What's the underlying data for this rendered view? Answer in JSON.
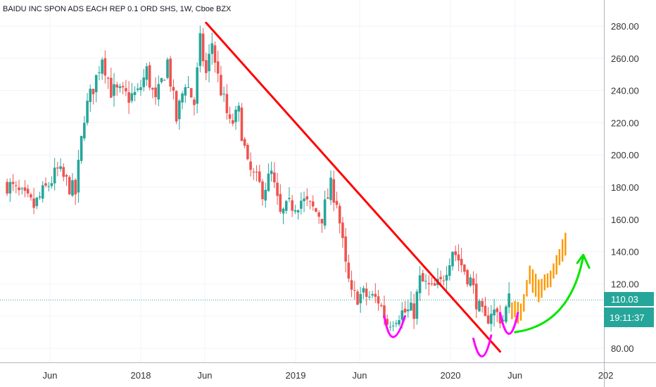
{
  "chart_data": {
    "type": "candlestick",
    "title": "BAIDU INC SPON ADS EACH REP 0.1 ORD SHS, 1W, Cboe BZX",
    "x_tick_labels": [
      "Jun",
      "2018",
      "Jun",
      "2019",
      "Jun",
      "2020",
      "Jun",
      "202"
    ],
    "y_tick_labels": [
      "80.00",
      "100.00",
      "120.00",
      "140.00",
      "160.00",
      "180.00",
      "200.00",
      "220.00",
      "240.00",
      "260.00",
      "280.00"
    ],
    "y_ticks": [
      80,
      100,
      120,
      140,
      160,
      180,
      200,
      220,
      240,
      260,
      280
    ],
    "ylim": [
      72,
      290
    ],
    "x_range": [
      "2017-02-20",
      "2021-01-04"
    ],
    "last_price": 110.03,
    "last_price_label": "110.03",
    "countdown_label": "19:11:37",
    "colors": {
      "up": "#26a69a",
      "down": "#ef5350",
      "trendline": "#ff0000",
      "arcs": "#ff00ff",
      "arrow": "#00e600",
      "projection": "#ff9800",
      "price_tag": "#26a69a"
    },
    "anchors": [
      [
        "2017-02-20",
        182
      ],
      [
        "2017-04-24",
        168
      ],
      [
        "2017-06-19",
        190
      ],
      [
        "2017-07-31",
        176
      ],
      [
        "2017-08-21",
        225
      ],
      [
        "2017-09-18",
        248
      ],
      [
        "2017-10-02",
        262
      ],
      [
        "2017-10-23",
        240
      ],
      [
        "2017-12-04",
        236
      ],
      [
        "2017-12-25",
        238
      ],
      [
        "2018-01-15",
        252
      ],
      [
        "2018-02-05",
        232
      ],
      [
        "2018-03-05",
        258
      ],
      [
        "2018-03-26",
        222
      ],
      [
        "2018-04-16",
        246
      ],
      [
        "2018-05-07",
        232
      ],
      [
        "2018-05-21",
        270
      ],
      [
        "2018-06-04",
        250
      ],
      [
        "2018-06-18",
        270
      ],
      [
        "2018-07-02",
        248
      ],
      [
        "2018-07-30",
        218
      ],
      [
        "2018-08-20",
        226
      ],
      [
        "2018-09-10",
        192
      ],
      [
        "2018-10-15",
        178
      ],
      [
        "2018-11-05",
        188
      ],
      [
        "2018-11-26",
        162
      ],
      [
        "2018-12-17",
        168
      ],
      [
        "2019-01-14",
        172
      ],
      [
        "2019-03-04",
        162
      ],
      [
        "2019-03-25",
        180
      ],
      [
        "2019-04-08",
        172
      ],
      [
        "2019-04-29",
        130
      ],
      [
        "2019-05-13",
        112
      ],
      [
        "2019-06-10",
        113
      ],
      [
        "2019-07-15",
        110
      ],
      [
        "2019-08-05",
        96
      ],
      [
        "2019-09-02",
        102
      ],
      [
        "2019-10-07",
        103
      ],
      [
        "2019-10-21",
        122
      ],
      [
        "2019-11-18",
        116
      ],
      [
        "2019-12-09",
        120
      ],
      [
        "2020-01-06",
        142
      ],
      [
        "2020-01-27",
        132
      ],
      [
        "2020-02-17",
        122
      ],
      [
        "2020-03-09",
        104
      ],
      [
        "2020-03-23",
        96
      ],
      [
        "2020-04-06",
        104
      ],
      [
        "2020-05-04",
        98
      ],
      [
        "2020-05-18",
        110
      ]
    ],
    "projection": [
      [
        "2020-05-25",
        104
      ],
      [
        "2020-06-15",
        102
      ],
      [
        "2020-07-06",
        124
      ],
      [
        "2020-07-27",
        116
      ],
      [
        "2020-08-24",
        124
      ],
      [
        "2020-09-28",
        145
      ]
    ],
    "trendline": [
      [
        "2018-06-04",
        282
      ],
      [
        "2020-04-27",
        78
      ]
    ],
    "smile_left": [
      [
        "2019-07-29",
        100
      ],
      [
        "2019-08-19",
        87
      ],
      [
        "2019-09-16",
        100
      ]
    ],
    "smile_middle": [
      [
        "2020-02-24",
        86
      ],
      [
        "2020-03-16",
        75
      ],
      [
        "2020-04-06",
        88
      ]
    ],
    "smile_right": [
      [
        "2020-04-27",
        102
      ],
      [
        "2020-05-18",
        89
      ],
      [
        "2020-06-08",
        102
      ]
    ],
    "green_arrow": [
      [
        "2020-06-01",
        90
      ],
      [
        "2020-09-14",
        104
      ],
      [
        "2020-11-09",
        137
      ]
    ],
    "green_arrow_head": [
      [
        "2020-10-26",
        133
      ],
      [
        "2020-11-09",
        138
      ],
      [
        "2020-11-23",
        130
      ]
    ]
  }
}
